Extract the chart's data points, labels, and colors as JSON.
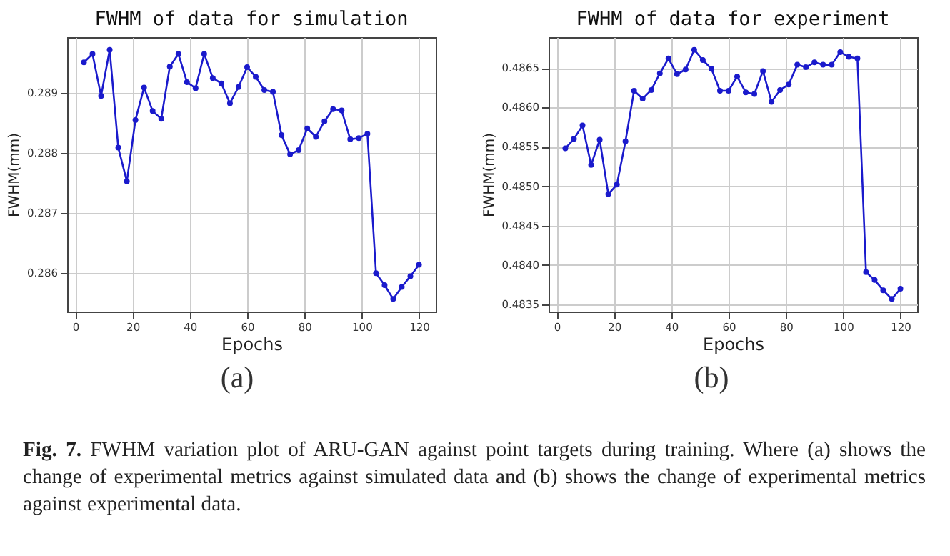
{
  "chart_data": [
    {
      "type": "line",
      "title": "FWHM of data for simulation",
      "xlabel": "Epochs",
      "ylabel": "FWHM(mm)",
      "annotations": [
        "(a)"
      ],
      "x": [
        3,
        6,
        9,
        12,
        15,
        18,
        21,
        24,
        27,
        30,
        33,
        36,
        39,
        42,
        45,
        48,
        51,
        54,
        57,
        60,
        63,
        66,
        69,
        72,
        75,
        78,
        81,
        84,
        87,
        90,
        93,
        96,
        99,
        102,
        105,
        108,
        111,
        114,
        117,
        120
      ],
      "series": [
        {
          "color": "#1a1acc",
          "values": [
            0.28951,
            0.28965,
            0.28895,
            0.28972,
            0.28809,
            0.28753,
            0.28855,
            0.28909,
            0.2887,
            0.28857,
            0.28944,
            0.28965,
            0.28918,
            0.28908,
            0.28965,
            0.28925,
            0.28916,
            0.28883,
            0.2891,
            0.28943,
            0.28927,
            0.28905,
            0.28902,
            0.2883,
            0.28798,
            0.28805,
            0.28841,
            0.28827,
            0.28853,
            0.28873,
            0.28871,
            0.28823,
            0.28825,
            0.28832,
            0.286,
            0.2858,
            0.28557,
            0.28577,
            0.28595,
            0.28614
          ]
        }
      ],
      "xlim": [
        -2.85,
        125.85
      ],
      "xticks": [
        0,
        20,
        40,
        60,
        80,
        100,
        120
      ],
      "ylim": [
        0.28536,
        0.28993
      ],
      "yticks": [
        0.286,
        0.287,
        0.288,
        0.289
      ],
      "grid": true,
      "marker": "circle",
      "line_style": "solid"
    },
    {
      "type": "line",
      "title": "FWHM of data for experiment",
      "xlabel": "Epochs",
      "ylabel": "FWHM(mm)",
      "annotations": [
        "(b)"
      ],
      "x": [
        3,
        6,
        9,
        12,
        15,
        18,
        21,
        24,
        27,
        30,
        33,
        36,
        39,
        42,
        45,
        48,
        51,
        54,
        57,
        60,
        63,
        66,
        69,
        72,
        75,
        78,
        81,
        84,
        87,
        90,
        93,
        96,
        99,
        102,
        105,
        108,
        111,
        114,
        117,
        120
      ],
      "series": [
        {
          "color": "#1a1acc",
          "values": [
            0.48548,
            0.4856,
            0.48577,
            0.48527,
            0.48559,
            0.4849,
            0.48502,
            0.48557,
            0.48621,
            0.48611,
            0.48622,
            0.48643,
            0.48662,
            0.48642,
            0.48648,
            0.48673,
            0.4866,
            0.48649,
            0.48621,
            0.48621,
            0.48639,
            0.48619,
            0.48617,
            0.48646,
            0.48607,
            0.48622,
            0.48629,
            0.48654,
            0.48651,
            0.48657,
            0.48654,
            0.48654,
            0.4867,
            0.48664,
            0.48662,
            0.48391,
            0.48381,
            0.48368,
            0.48357,
            0.4837
          ]
        }
      ],
      "xlim": [
        -2.85,
        125.85
      ],
      "xticks": [
        0,
        20,
        40,
        60,
        80,
        100,
        120
      ],
      "ylim": [
        0.48341,
        0.48689
      ],
      "yticks": [
        0.4835,
        {
          "value": 0.484,
          "label": "0.4840"
        },
        0.4845,
        {
          "value": 0.485,
          "label": "0.4850"
        },
        0.4855,
        {
          "value": 0.486,
          "label": "0.4860"
        },
        0.4865
      ],
      "grid": true,
      "marker": "circle",
      "line_style": "solid"
    },
    {
      "type": "other",
      "title": "Fig. 7.",
      "annotations": [
        "FWHM variation plot of ARU-GAN against point targets during training. Where (a) shows the change of experimental metrics against simulated data and (b) shows the change of experimental metrics against experimental data."
      ]
    }
  ]
}
